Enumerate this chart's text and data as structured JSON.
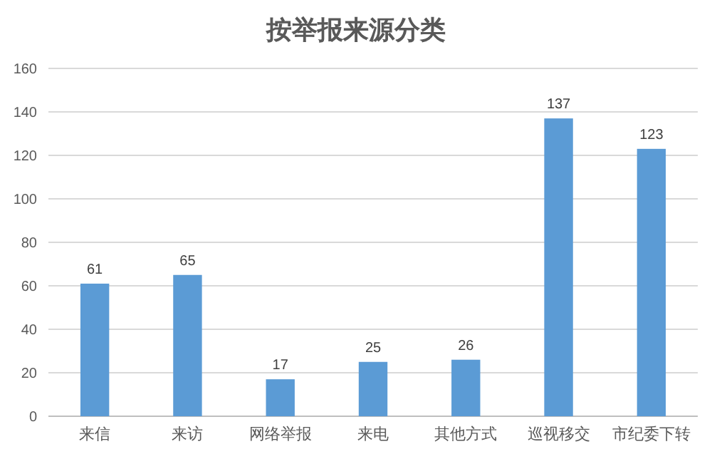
{
  "chart_data": {
    "type": "bar",
    "title": "按举报来源分类",
    "categories": [
      "来信",
      "来访",
      "网络举报",
      "来电",
      "其他方式",
      "巡视移交",
      "市纪委下转"
    ],
    "values": [
      61,
      65,
      17,
      25,
      26,
      137,
      123
    ],
    "color": "#5b9bd5",
    "ylim": [
      0,
      160
    ],
    "yticks": [
      0,
      20,
      40,
      60,
      80,
      100,
      120,
      140,
      160
    ],
    "grid": "y",
    "data_labels": true
  }
}
